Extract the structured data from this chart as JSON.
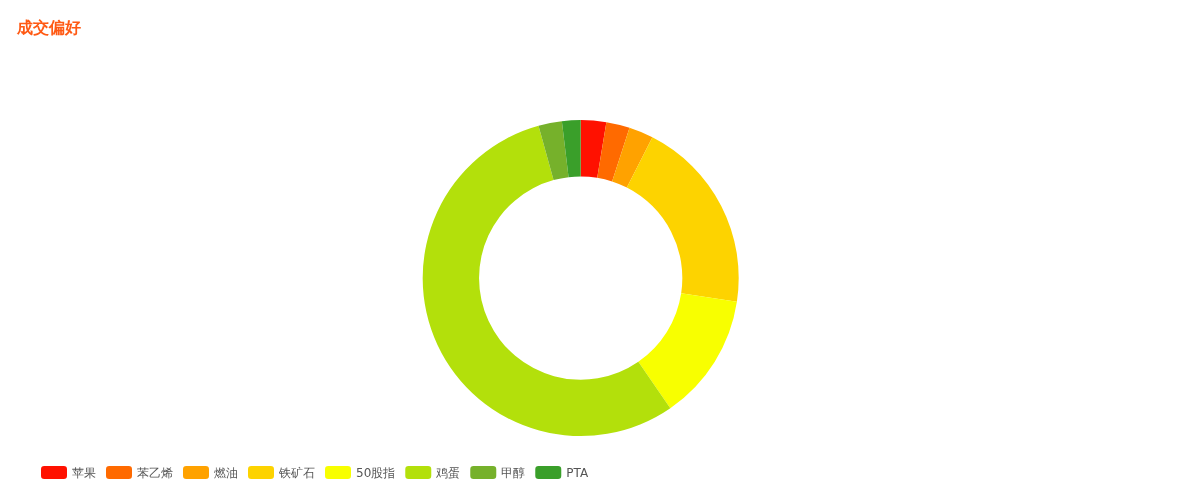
{
  "chart_data": {
    "type": "donut",
    "title": "成交偏好",
    "categories": [
      "苹果",
      "苯乙烯",
      "燃油",
      "铁矿石",
      "50股指",
      "鸡蛋",
      "甲醇",
      "PTA"
    ],
    "values": [
      2.6,
      2.4,
      2.5,
      19.9,
      13,
      55.3,
      2.4,
      1.9
    ],
    "colors": [
      "#ff1100",
      "#ff6a00",
      "#ffa200",
      "#fdd300",
      "#f8ff00",
      "#b3e00b",
      "#76b12b",
      "#3a9f2a"
    ],
    "legend": "bottom left"
  }
}
